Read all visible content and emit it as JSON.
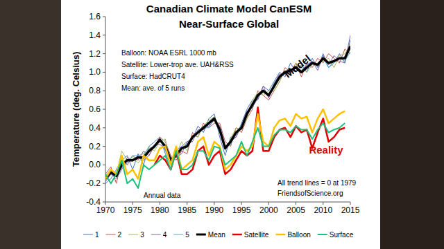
{
  "chart_data": {
    "type": "line",
    "title": "Canadian Climate Model CanESM",
    "subtitle": "Near-Surface Global",
    "y_label": "Temperature (deg. Celsius)",
    "annotations": [
      "Balloon: NOAA ESRL 1000 mb",
      "Satellite: Lower-trop ave. UAH&RSS",
      "Surface: HadCRUT4",
      "Mean: ave. of 5 runs",
      "Model",
      "Reality",
      "All trend lines = 0 at 1979",
      "FriendsofScience.org",
      "Annual data"
    ],
    "x": [
      1970,
      1971,
      1972,
      1973,
      1974,
      1975,
      1976,
      1977,
      1978,
      1979,
      1980,
      1981,
      1982,
      1983,
      1984,
      1985,
      1986,
      1987,
      1988,
      1989,
      1990,
      1991,
      1992,
      1993,
      1994,
      1995,
      1996,
      1997,
      1998,
      1999,
      2000,
      2001,
      2002,
      2003,
      2004,
      2005,
      2006,
      2007,
      2008,
      2009,
      2010,
      2011,
      2012,
      2013,
      2014,
      2015
    ],
    "xlim": [
      1970,
      2015
    ],
    "xticks": [
      1970,
      1975,
      1980,
      1985,
      1990,
      1995,
      2000,
      2005,
      2010,
      2015
    ],
    "ylim": [
      -0.4,
      1.6
    ],
    "yticks": [
      -0.4,
      -0.2,
      {
        "value": 0,
        "label": "0.0"
      },
      0.2,
      0.4,
      0.6,
      0.8,
      {
        "value": 1,
        "label": "1.0"
      },
      1.2,
      1.4,
      1.6
    ],
    "grid": false,
    "legend": "bottom",
    "series": [
      {
        "name": "1",
        "color": "#4472c4",
        "values": [
          -0.2,
          -0.15,
          -0.05,
          0.05,
          0.1,
          -0.05,
          0.12,
          0.0,
          0.2,
          0.25,
          0.3,
          0.12,
          0.0,
          0.15,
          0.2,
          0.25,
          0.28,
          0.42,
          0.35,
          0.5,
          0.55,
          0.3,
          0.1,
          0.3,
          0.3,
          0.45,
          0.6,
          0.7,
          0.7,
          0.85,
          0.8,
          0.9,
          1.0,
          0.95,
          1.1,
          1.0,
          1.08,
          1.0,
          1.15,
          1.05,
          1.2,
          1.05,
          1.1,
          1.2,
          1.1,
          1.35
        ]
      },
      {
        "name": "2",
        "color": "#c0504d",
        "values": [
          -0.1,
          -0.02,
          -0.2,
          0.05,
          0.0,
          0.1,
          0.05,
          0.15,
          0.1,
          0.2,
          0.3,
          0.25,
          0.1,
          0.05,
          0.15,
          0.12,
          0.35,
          0.3,
          0.45,
          0.4,
          0.45,
          0.45,
          0.25,
          0.2,
          0.4,
          0.35,
          0.5,
          0.6,
          0.8,
          0.75,
          0.7,
          0.8,
          0.9,
          1.05,
          1.0,
          1.1,
          0.95,
          1.1,
          1.05,
          1.15,
          1.1,
          1.2,
          1.15,
          1.1,
          1.25,
          1.2
        ]
      },
      {
        "name": "3",
        "color": "#9bbb59",
        "values": [
          -0.12,
          -0.05,
          -0.1,
          0.15,
          0.05,
          0.08,
          0.02,
          0.1,
          0.2,
          0.15,
          0.25,
          0.28,
          0.0,
          0.12,
          0.25,
          0.15,
          0.32,
          0.3,
          0.42,
          0.48,
          0.52,
          0.4,
          0.15,
          0.28,
          0.4,
          0.38,
          0.5,
          0.7,
          0.78,
          0.75,
          0.8,
          0.8,
          0.9,
          1.02,
          0.98,
          1.1,
          1.05,
          1.0,
          1.08,
          1.1,
          1.12,
          1.15,
          1.05,
          1.18,
          1.2,
          1.3
        ]
      },
      {
        "name": "4",
        "color": "#8064a2",
        "values": [
          -0.18,
          -0.1,
          -0.15,
          -0.05,
          0.08,
          0.05,
          0.1,
          0.05,
          0.1,
          0.22,
          0.22,
          0.18,
          0.08,
          0.08,
          0.12,
          0.25,
          0.25,
          0.38,
          0.38,
          0.42,
          0.48,
          0.42,
          0.2,
          0.25,
          0.3,
          0.42,
          0.58,
          0.62,
          0.72,
          0.85,
          0.72,
          0.88,
          0.98,
          0.98,
          1.0,
          1.02,
          1.0,
          1.08,
          1.12,
          1.02,
          1.18,
          1.08,
          1.18,
          1.12,
          1.1,
          1.4
        ]
      },
      {
        "name": "5",
        "color": "#4bacc6",
        "values": [
          -0.15,
          -0.1,
          -0.12,
          -0.02,
          0.02,
          0.1,
          0.1,
          0.12,
          0.18,
          0.18,
          0.28,
          0.15,
          0.02,
          0.12,
          0.18,
          0.22,
          0.3,
          0.35,
          0.4,
          0.4,
          0.5,
          0.35,
          0.2,
          0.22,
          0.35,
          0.4,
          0.55,
          0.62,
          0.75,
          0.78,
          0.75,
          0.88,
          0.95,
          1.0,
          1.02,
          1.05,
          1.02,
          1.08,
          1.1,
          1.08,
          1.15,
          1.05,
          1.12,
          1.15,
          1.12,
          1.22
        ]
      },
      {
        "name": "Mean",
        "color": "#000000",
        "values": [
          -0.15,
          -0.08,
          -0.12,
          0.0,
          0.05,
          0.05,
          0.08,
          0.08,
          0.15,
          0.2,
          0.27,
          0.2,
          0.05,
          0.1,
          0.18,
          0.2,
          0.3,
          0.35,
          0.4,
          0.45,
          0.5,
          0.38,
          0.18,
          0.25,
          0.35,
          0.4,
          0.55,
          0.65,
          0.75,
          0.8,
          0.75,
          0.85,
          0.95,
          1.0,
          1.02,
          1.05,
          1.0,
          1.05,
          1.1,
          1.08,
          1.15,
          1.1,
          1.12,
          1.15,
          1.15,
          1.28
        ]
      },
      {
        "name": "Satellite",
        "color": "#e00000",
        "values": [
          null,
          null,
          null,
          null,
          null,
          null,
          null,
          null,
          null,
          0.0,
          0.1,
          0.05,
          -0.05,
          0.15,
          -0.1,
          -0.1,
          -0.05,
          0.15,
          0.2,
          0.0,
          0.1,
          0.15,
          -0.1,
          -0.05,
          0.05,
          0.15,
          0.1,
          0.15,
          0.62,
          0.15,
          0.15,
          0.3,
          0.38,
          0.4,
          0.3,
          0.42,
          0.35,
          0.38,
          0.18,
          0.35,
          0.5,
          0.25,
          0.3,
          0.38,
          0.4,
          null
        ]
      },
      {
        "name": "Balloon",
        "color": "#ffc000",
        "values": [
          -0.15,
          -0.05,
          -0.1,
          0.1,
          -0.1,
          -0.05,
          -0.15,
          0.1,
          0.05,
          0.05,
          0.18,
          0.2,
          0.0,
          0.2,
          -0.05,
          0.0,
          0.05,
          0.25,
          0.3,
          0.1,
          0.25,
          0.2,
          -0.05,
          0.0,
          0.1,
          0.2,
          0.15,
          0.2,
          0.55,
          0.25,
          0.2,
          0.4,
          0.48,
          0.5,
          0.42,
          0.55,
          0.5,
          0.52,
          0.35,
          0.5,
          0.6,
          0.45,
          0.5,
          0.55,
          0.58,
          null
        ]
      },
      {
        "name": "Surface",
        "color": "#1fc07a",
        "values": [
          -0.1,
          -0.2,
          -0.1,
          0.05,
          -0.2,
          -0.15,
          -0.25,
          0.0,
          -0.05,
          0.0,
          0.05,
          0.1,
          -0.05,
          0.15,
          -0.05,
          -0.05,
          0.0,
          0.15,
          0.15,
          0.05,
          0.2,
          0.18,
          0.0,
          0.05,
          0.1,
          0.25,
          0.1,
          0.25,
          0.4,
          0.2,
          0.2,
          0.32,
          0.38,
          0.38,
          0.35,
          0.42,
          0.38,
          0.38,
          0.28,
          0.38,
          0.45,
          0.35,
          0.38,
          0.4,
          0.45,
          null
        ]
      }
    ]
  }
}
